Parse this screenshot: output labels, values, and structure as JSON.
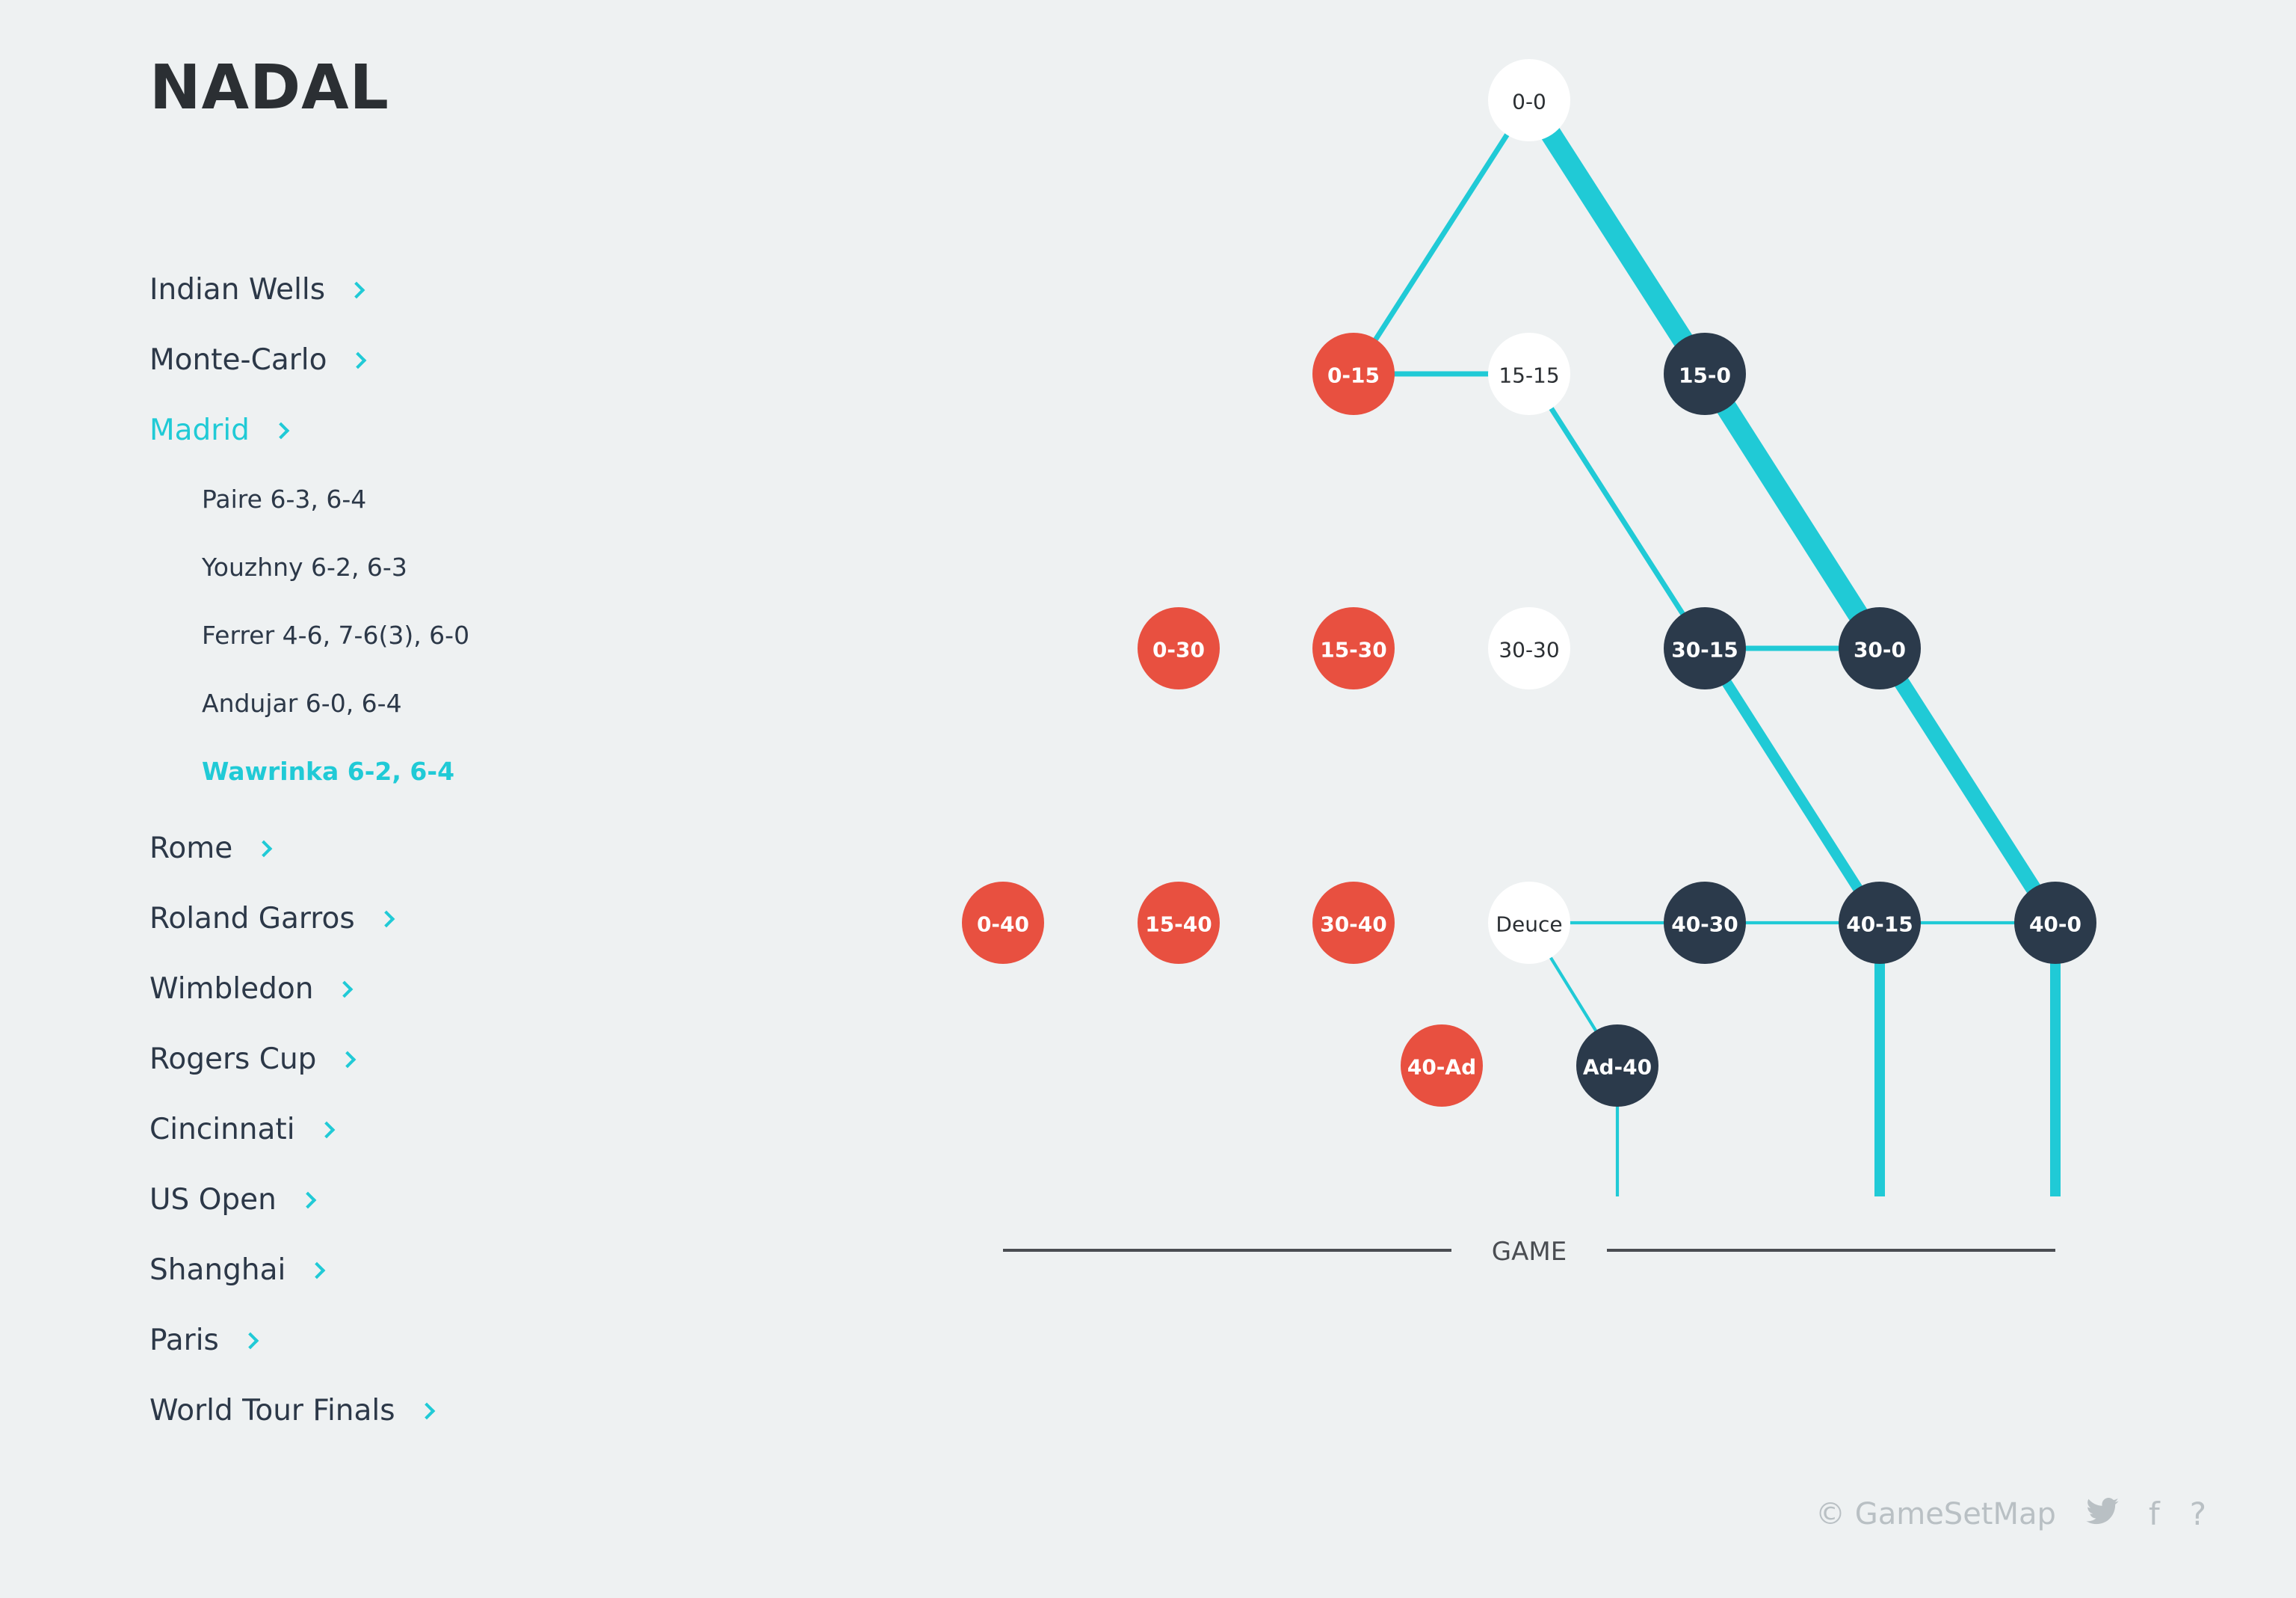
{
  "player": "NADAL",
  "tournaments": [
    {
      "label": "Indian Wells",
      "active": false
    },
    {
      "label": "Monte-Carlo",
      "active": false
    },
    {
      "label": "Madrid",
      "active": true,
      "matches": [
        {
          "label": "Paire 6-3, 6-4",
          "active": false
        },
        {
          "label": "Youzhny 6-2, 6-3",
          "active": false
        },
        {
          "label": "Ferrer 4-6, 7-6(3), 6-0",
          "active": false
        },
        {
          "label": "Andujar 6-0, 6-4",
          "active": false
        },
        {
          "label": "Wawrinka 6-2, 6-4",
          "active": true
        }
      ]
    },
    {
      "label": "Rome",
      "active": false
    },
    {
      "label": "Roland Garros",
      "active": false
    },
    {
      "label": "Wimbledon",
      "active": false
    },
    {
      "label": "Rogers Cup",
      "active": false
    },
    {
      "label": "Cincinnati",
      "active": false
    },
    {
      "label": "US Open",
      "active": false
    },
    {
      "label": "Shanghai",
      "active": false
    },
    {
      "label": "Paris",
      "active": false
    },
    {
      "label": "World Tour Finals",
      "active": false
    }
  ],
  "score_tree": {
    "colors": {
      "win": "#2b3a4b",
      "loss": "#e85040",
      "neutral": "#ffffff",
      "path": "#20cad6"
    },
    "nodes": [
      {
        "id": "0-0",
        "label": "0-0",
        "state": "neutral"
      },
      {
        "id": "0-15",
        "label": "0-15",
        "state": "loss"
      },
      {
        "id": "15-15",
        "label": "15-15",
        "state": "neutral"
      },
      {
        "id": "15-0",
        "label": "15-0",
        "state": "win"
      },
      {
        "id": "0-30",
        "label": "0-30",
        "state": "loss"
      },
      {
        "id": "15-30",
        "label": "15-30",
        "state": "loss"
      },
      {
        "id": "30-30",
        "label": "30-30",
        "state": "neutral"
      },
      {
        "id": "30-15",
        "label": "30-15",
        "state": "win"
      },
      {
        "id": "30-0",
        "label": "30-0",
        "state": "win"
      },
      {
        "id": "0-40",
        "label": "0-40",
        "state": "loss"
      },
      {
        "id": "15-40",
        "label": "15-40",
        "state": "loss"
      },
      {
        "id": "30-40",
        "label": "30-40",
        "state": "loss"
      },
      {
        "id": "deuce",
        "label": "Deuce",
        "state": "neutral"
      },
      {
        "id": "40-30",
        "label": "40-30",
        "state": "win"
      },
      {
        "id": "40-15",
        "label": "40-15",
        "state": "win"
      },
      {
        "id": "40-0",
        "label": "40-0",
        "state": "win"
      },
      {
        "id": "40-ad",
        "label": "40-Ad",
        "state": "loss"
      },
      {
        "id": "ad-40",
        "label": "Ad-40",
        "state": "win"
      }
    ],
    "edges": [
      {
        "from": "0-0",
        "to": "0-15",
        "weight": 1
      },
      {
        "from": "0-0",
        "to": "15-0",
        "weight": 4
      },
      {
        "from": "0-15",
        "to": "15-15",
        "weight": 1
      },
      {
        "from": "15-15",
        "to": "30-15",
        "weight": 1
      },
      {
        "from": "15-0",
        "to": "30-0",
        "weight": 4
      },
      {
        "from": "30-15",
        "to": "30-0",
        "weight": 1
      },
      {
        "from": "30-15",
        "to": "40-15",
        "weight": 2
      },
      {
        "from": "30-0",
        "to": "40-0",
        "weight": 3
      },
      {
        "from": "deuce",
        "to": "40-30",
        "weight": 0.6
      },
      {
        "from": "40-30",
        "to": "40-15",
        "weight": 0.6
      },
      {
        "from": "40-15",
        "to": "40-0",
        "weight": 0.6
      },
      {
        "from": "deuce",
        "to": "ad-40",
        "weight": 0.6
      },
      {
        "from": "ad-40",
        "to": "game",
        "weight": 0.6
      },
      {
        "from": "40-15",
        "to": "game",
        "weight": 2
      },
      {
        "from": "40-0",
        "to": "game",
        "weight": 2
      }
    ],
    "game_label": "GAME"
  },
  "footer": {
    "copyright": "© GameSetMap",
    "icons": [
      "twitter-icon",
      "facebook-icon",
      "help-icon"
    ],
    "facebook_glyph": "f",
    "help_glyph": "?"
  }
}
